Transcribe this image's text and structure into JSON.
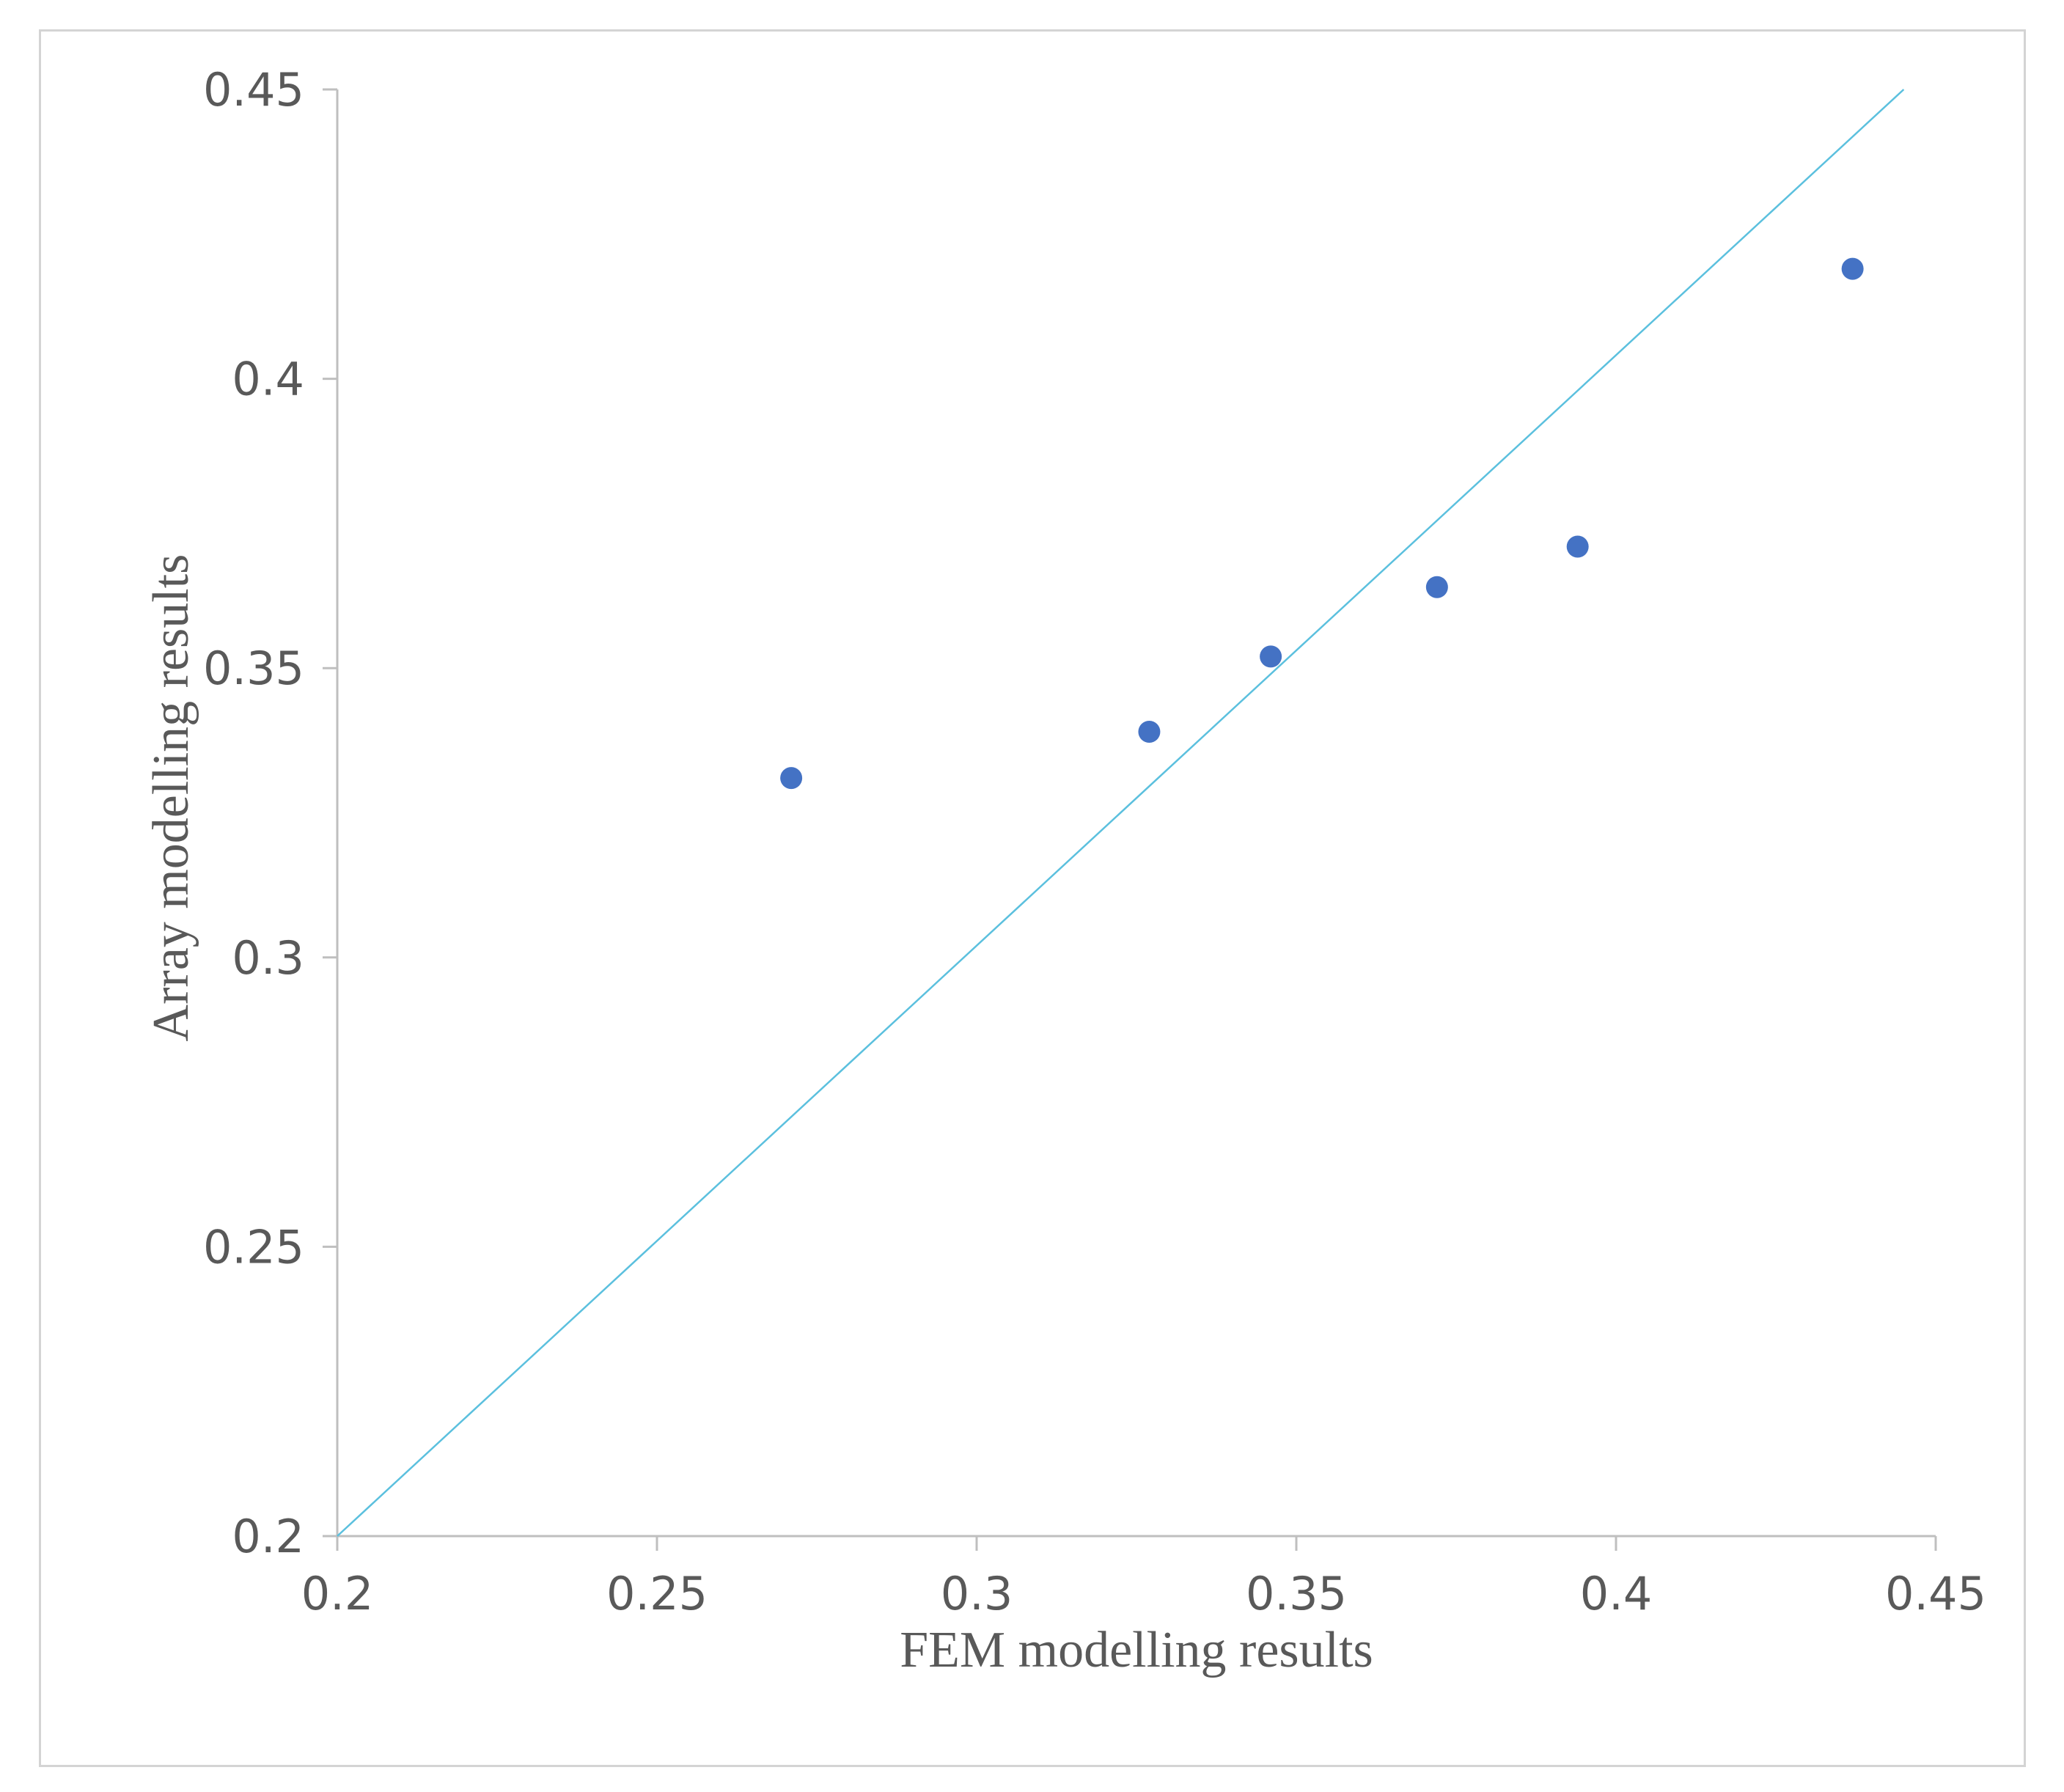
{
  "chart_data": {
    "type": "scatter",
    "title": "",
    "xlabel": "FEM modelling  results",
    "ylabel": "Array modelling  results",
    "xlim": [
      0.2,
      0.45
    ],
    "ylim": [
      0.2,
      0.45
    ],
    "x_ticks": [
      "0.2",
      "0.25",
      "0.3",
      "0.35",
      "0.4",
      "0.45"
    ],
    "y_ticks": [
      "0.2",
      "0.25",
      "0.3",
      "0.35",
      "0.4",
      "0.45"
    ],
    "grid": false,
    "legend": "none",
    "series": [
      {
        "points": [
          {
            "x": 0.271,
            "y": 0.331
          },
          {
            "x": 0.327,
            "y": 0.339
          },
          {
            "x": 0.346,
            "y": 0.352
          },
          {
            "x": 0.372,
            "y": 0.364
          },
          {
            "x": 0.394,
            "y": 0.371
          },
          {
            "x": 0.437,
            "y": 0.419
          }
        ],
        "color": "#4472c4"
      }
    ],
    "reference_line": {
      "from": {
        "x": 0.2,
        "y": 0.2
      },
      "to": {
        "x": 0.445,
        "y": 0.45
      },
      "color": "#5bc0de"
    },
    "axis_color": "#bfbfbf",
    "text_color": "#595959"
  }
}
